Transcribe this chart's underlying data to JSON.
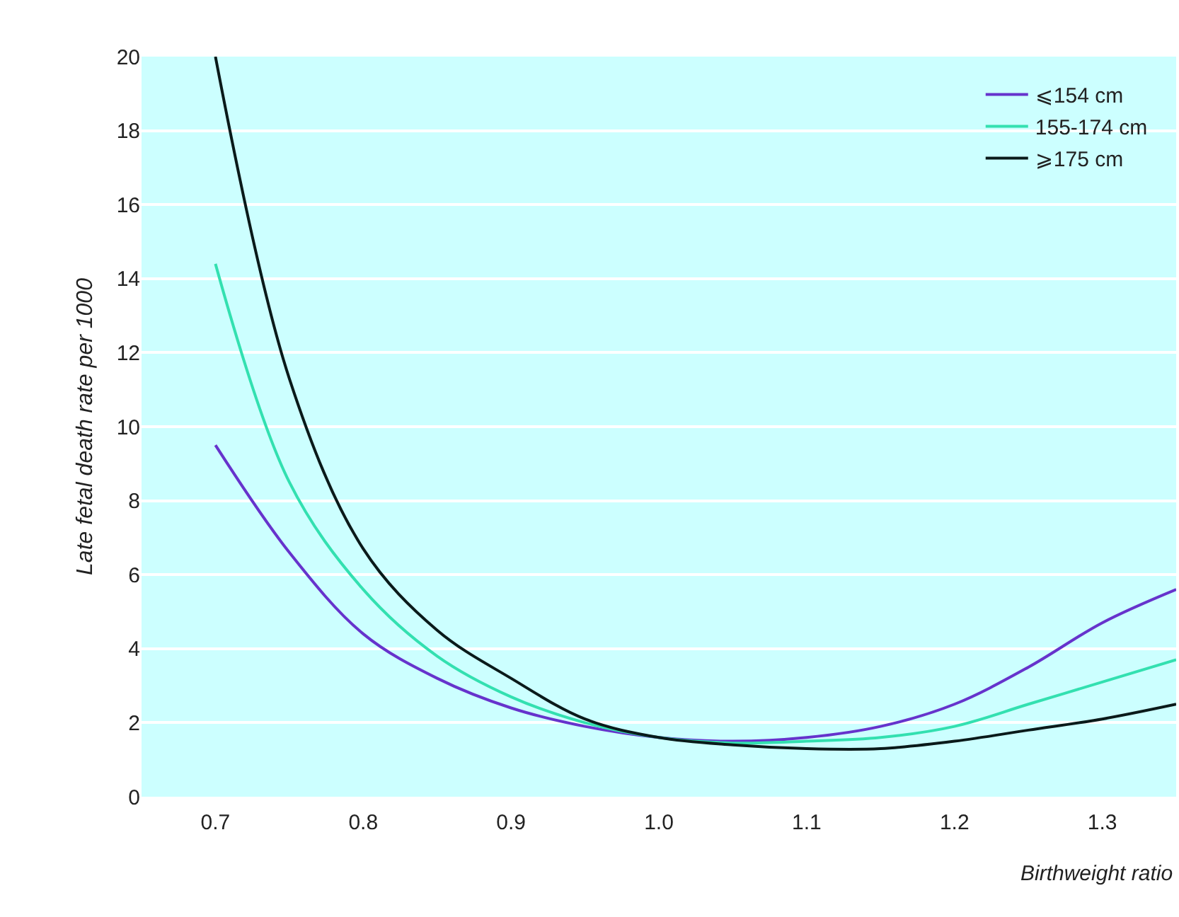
{
  "chart_data": {
    "type": "line",
    "xlabel": "Birthweight ratio",
    "ylabel": "Late fetal death rate per 1000",
    "x": [
      0.7,
      0.75,
      0.8,
      0.85,
      0.9,
      0.95,
      1.0,
      1.05,
      1.1,
      1.15,
      1.2,
      1.25,
      1.3,
      1.35
    ],
    "series": [
      {
        "name": "⩽154 cm",
        "color": "#6633cc",
        "values": [
          9.5,
          6.6,
          4.4,
          3.2,
          2.4,
          1.9,
          1.6,
          1.5,
          1.6,
          1.9,
          2.5,
          3.5,
          4.7,
          5.6
        ]
      },
      {
        "name": "155-174 cm",
        "color": "#33e0b0",
        "values": [
          14.4,
          8.5,
          5.6,
          3.8,
          2.7,
          2.0,
          1.6,
          1.45,
          1.5,
          1.6,
          1.9,
          2.5,
          3.1,
          3.7
        ]
      },
      {
        "name": "⩾175 cm",
        "color": "#0a1a1a",
        "values": [
          20,
          11.3,
          6.7,
          4.5,
          3.2,
          2.1,
          1.6,
          1.4,
          1.3,
          1.3,
          1.5,
          1.8,
          2.1,
          2.5
        ]
      }
    ],
    "xlim": [
      0.65,
      1.35
    ],
    "xticks": [
      {
        "value": 0.7,
        "label": "0.7"
      },
      {
        "value": 0.8,
        "label": "0.8"
      },
      {
        "value": 0.9,
        "label": "0.9"
      },
      {
        "value": 1.0,
        "label": "1.0"
      },
      {
        "value": 1.1,
        "label": "1.1"
      },
      {
        "value": 1.2,
        "label": "1.2"
      },
      {
        "value": 1.3,
        "label": "1.3"
      }
    ],
    "ylim": [
      0,
      20
    ],
    "yticks": [
      0,
      2,
      4,
      6,
      8,
      10,
      12,
      14,
      16,
      18,
      20
    ],
    "grid": "y",
    "legend": "top right",
    "marker": "none",
    "line_style": "solid"
  }
}
